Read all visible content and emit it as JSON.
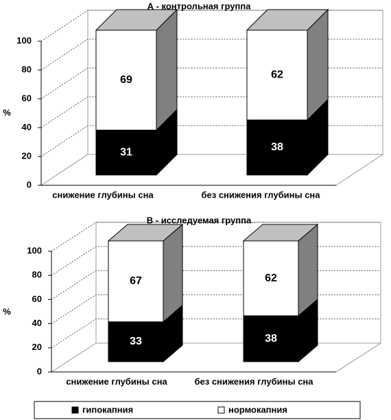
{
  "chart_data": [
    {
      "type": "bar",
      "stacked": true,
      "title": "А - контрольная группа",
      "ylabel": "%",
      "categories": [
        "снижение глубины сна",
        "без снижения глубины сна"
      ],
      "series": [
        {
          "color": "#000000",
          "values": [
            31,
            38
          ]
        },
        {
          "color": "#ffffff",
          "values": [
            69,
            62
          ]
        }
      ],
      "ylim": [
        0,
        100
      ],
      "yticks": [
        0,
        20,
        40,
        60,
        80,
        100
      ],
      "grid": true
    },
    {
      "type": "bar",
      "stacked": true,
      "title": "В - исследуемая группа",
      "ylabel": "%",
      "categories": [
        "снижение глубины сна",
        "без снижения глубины сна"
      ],
      "series": [
        {
          "name": "гипокапния",
          "color": "#000000",
          "values": [
            33,
            38
          ]
        },
        {
          "name": "нормокапния",
          "color": "#ffffff",
          "values": [
            67,
            62
          ]
        }
      ],
      "ylim": [
        0,
        100
      ],
      "yticks": [
        0,
        20,
        40,
        60,
        80,
        100
      ],
      "grid": true,
      "legend": "bottom"
    }
  ]
}
